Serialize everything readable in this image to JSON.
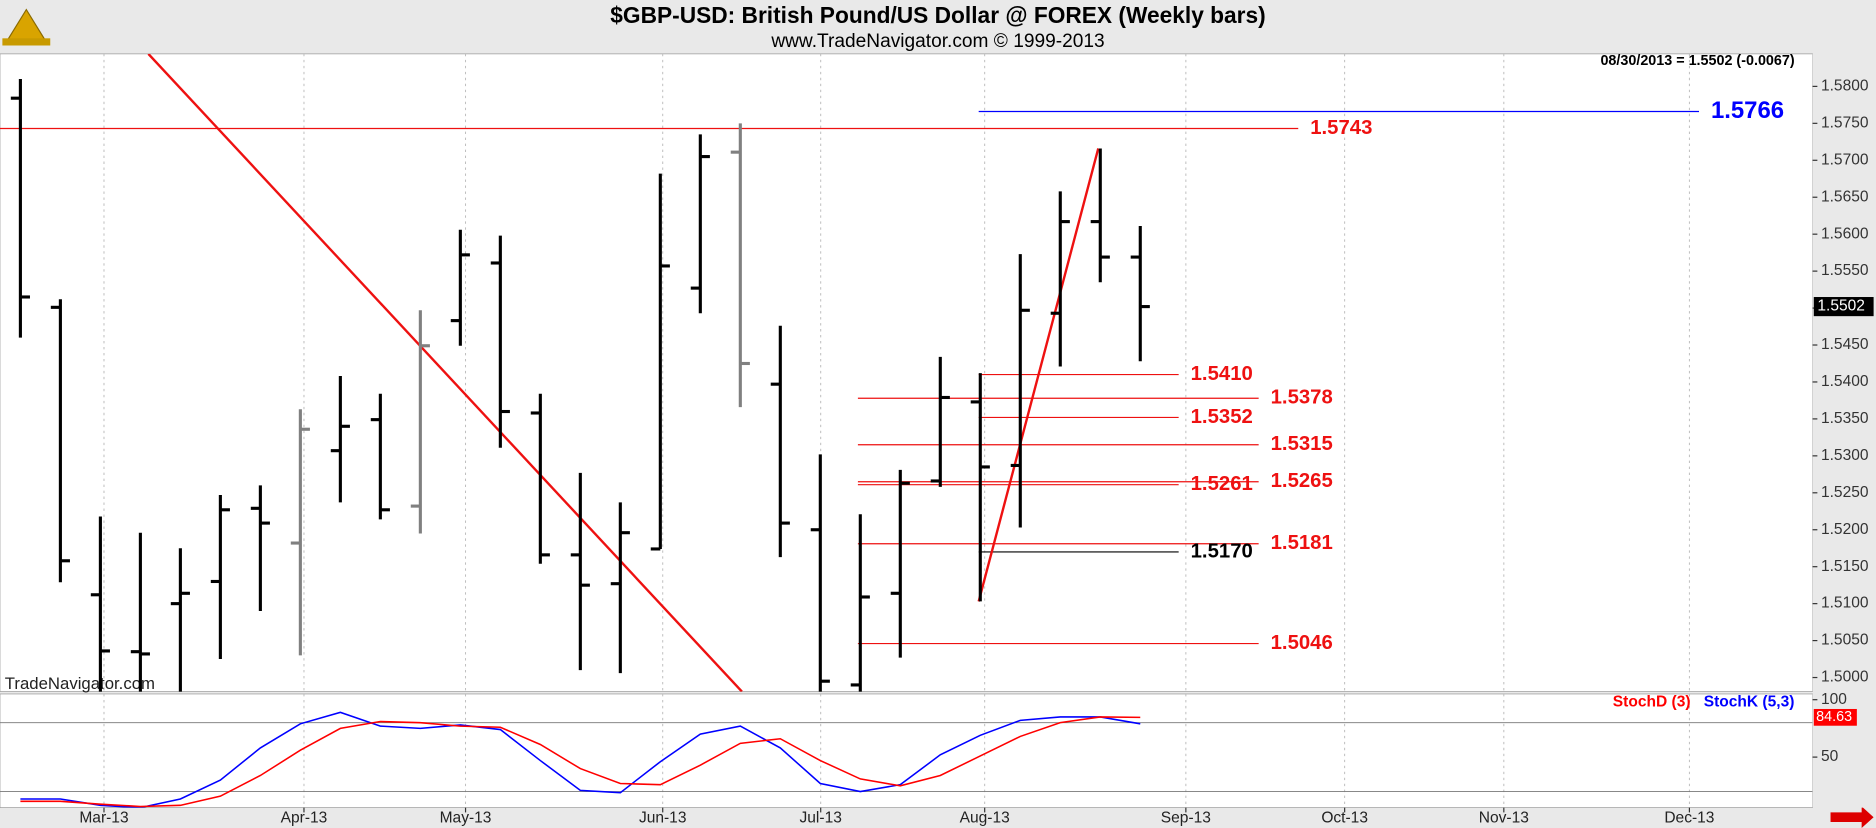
{
  "chart_data": [
    {
      "type": "ohlc",
      "title": "$GBP-USD:  British Pound/US Dollar @ FOREX  (Weekly bars)",
      "subtitle": "www.TradeNavigator.com © 1999-2013",
      "header_note": "08/30/2013 = 1.5502 (-0.0067)",
      "watermark": "TradeNavigator.com",
      "x": [
        0,
        1,
        2,
        3,
        4,
        5,
        6,
        7,
        8,
        9,
        10,
        11,
        12,
        13,
        14,
        15,
        16,
        17,
        18,
        19,
        20,
        21,
        22,
        23,
        24,
        25,
        26,
        27,
        28
      ],
      "open": [
        1.5784,
        1.5501,
        1.5112,
        1.5035,
        1.51,
        1.513,
        1.5229,
        1.5182,
        1.5307,
        1.5349,
        1.5232,
        1.5483,
        1.5561,
        1.5358,
        1.5166,
        1.5127,
        1.5174,
        1.5527,
        1.5711,
        1.5397,
        1.52,
        1.499,
        1.5114,
        1.5266,
        1.5373,
        1.5287,
        1.5493,
        1.5617,
        1.5569
      ],
      "high": [
        1.581,
        1.5512,
        1.5218,
        1.5196,
        1.5175,
        1.5247,
        1.526,
        1.5363,
        1.5408,
        1.5384,
        1.5497,
        1.5606,
        1.5598,
        1.5384,
        1.5277,
        1.5237,
        1.5682,
        1.5735,
        1.575,
        1.5476,
        1.5302,
        1.5221,
        1.5281,
        1.5434,
        1.5412,
        1.5573,
        1.5658,
        1.5716,
        1.5611
      ],
      "low": [
        1.546,
        1.5129,
        1.497,
        1.497,
        1.497,
        1.5025,
        1.509,
        1.503,
        1.5237,
        1.5214,
        1.5195,
        1.5449,
        1.5311,
        1.5154,
        1.501,
        1.5006,
        1.5174,
        1.5493,
        1.5366,
        1.5163,
        1.497,
        1.497,
        1.5027,
        1.5258,
        1.5103,
        1.5203,
        1.5421,
        1.5535,
        1.5428
      ],
      "close": [
        1.5515,
        1.5158,
        1.5036,
        1.5032,
        1.5114,
        1.5227,
        1.5209,
        1.5336,
        1.534,
        1.5227,
        1.5449,
        1.5572,
        1.536,
        1.5166,
        1.5125,
        1.5196,
        1.5557,
        1.5705,
        1.5425,
        1.5209,
        1.4995,
        1.5109,
        1.5263,
        1.5379,
        1.5285,
        1.5497,
        1.5617,
        1.5569,
        1.5502
      ],
      "bar_colors": [
        "#000000",
        "#000000",
        "#000000",
        "#000000",
        "#000000",
        "#000000",
        "#000000",
        "#808080",
        "#000000",
        "#000000",
        "#808080",
        "#000000",
        "#000000",
        "#000000",
        "#000000",
        "#000000",
        "#000000",
        "#000000",
        "#808080",
        "#000000",
        "#000000",
        "#000000",
        "#000000",
        "#000000",
        "#000000",
        "#000000",
        "#000000",
        "#000000",
        "#000000"
      ],
      "xlim": [
        -0.51,
        44.81
      ],
      "ylim": [
        1.4981,
        1.5844
      ],
      "yticks": [
        {
          "value": 1.5,
          "label": "1.5000"
        },
        {
          "value": 1.505,
          "label": "1.5050"
        },
        {
          "value": 1.51,
          "label": "1.5100"
        },
        {
          "value": 1.515,
          "label": "1.5150"
        },
        {
          "value": 1.52,
          "label": "1.5200"
        },
        {
          "value": 1.525,
          "label": "1.5250"
        },
        {
          "value": 1.53,
          "label": "1.5300"
        },
        {
          "value": 1.535,
          "label": "1.5350"
        },
        {
          "value": 1.54,
          "label": "1.5400"
        },
        {
          "value": 1.545,
          "label": "1.5450"
        },
        {
          "value": 1.55,
          "label": "1.5500"
        },
        {
          "value": 1.555,
          "label": "1.5550"
        },
        {
          "value": 1.56,
          "label": "1.5600"
        },
        {
          "value": 1.565,
          "label": "1.5650"
        },
        {
          "value": 1.57,
          "label": "1.5700"
        },
        {
          "value": 1.575,
          "label": "1.5750"
        },
        {
          "value": 1.58,
          "label": "1.5800"
        }
      ],
      "levels": [
        {
          "value": 1.5743,
          "label": "1.5743",
          "color": "#ee1111",
          "x": [
            -0.51,
            31.95
          ]
        },
        {
          "value": 1.5766,
          "label": "1.5766",
          "color": "#0000ff",
          "x": [
            23.96,
            41.97
          ]
        },
        {
          "value": 1.541,
          "label": "1.5410",
          "color": "#ee1111",
          "x": [
            23.96,
            28.96
          ]
        },
        {
          "value": 1.5378,
          "label": "1.5378",
          "color": "#ee1111",
          "x": [
            20.94,
            30.96
          ]
        },
        {
          "value": 1.5352,
          "label": "1.5352",
          "color": "#ee1111",
          "x": [
            23.96,
            28.96
          ]
        },
        {
          "value": 1.5315,
          "label": "1.5315",
          "color": "#ee1111",
          "x": [
            20.94,
            30.96
          ]
        },
        {
          "value": 1.5261,
          "label": "1.5261",
          "color": "#ee1111",
          "x": [
            20.94,
            28.96
          ]
        },
        {
          "value": 1.5265,
          "label": "1.5265",
          "color": "#ee1111",
          "x": [
            20.94,
            30.96
          ]
        },
        {
          "value": 1.5181,
          "label": "1.5181",
          "color": "#ee1111",
          "x": [
            20.94,
            30.96
          ]
        },
        {
          "value": 1.517,
          "label": "1.5170",
          "color": "#000000",
          "x": [
            23.96,
            28.96
          ]
        },
        {
          "value": 1.5046,
          "label": "1.5046",
          "color": "#ee1111",
          "x": [
            20.94,
            30.96
          ]
        }
      ],
      "trendlines": [
        {
          "color": "#ee1111",
          "x": [
            3.2,
            18.04
          ],
          "y": [
            1.5844,
            1.4981
          ]
        },
        {
          "color": "#ee1111",
          "x": [
            23.96,
            26.95
          ],
          "y": [
            1.5103,
            1.5716
          ]
        }
      ]
    },
    {
      "type": "line",
      "x": [
        0,
        1,
        2,
        3,
        4,
        5,
        6,
        7,
        8,
        9,
        10,
        11,
        12,
        13,
        14,
        15,
        16,
        17,
        18,
        19,
        20,
        21,
        22,
        23,
        24,
        25,
        26,
        27,
        28
      ],
      "series": [
        {
          "name": "StochD (3)",
          "color": "#ff0000",
          "values": [
            11.5,
            11.5,
            9,
            7,
            8,
            16,
            34,
            56,
            75,
            81,
            80,
            77,
            76,
            61,
            40,
            27,
            26,
            43,
            62,
            66,
            47,
            31,
            25,
            34,
            51,
            68,
            80,
            85,
            84.63
          ]
        },
        {
          "name": "StochK (5,3)",
          "color": "#0000ff",
          "values": [
            13.5,
            13.5,
            8,
            6,
            13.5,
            30,
            58,
            79,
            89,
            77,
            75,
            78,
            74,
            47,
            21,
            19,
            46,
            70,
            77,
            58,
            27,
            20,
            26,
            52,
            69,
            82,
            85,
            85,
            79
          ]
        }
      ],
      "xlim": [
        -0.51,
        44.81
      ],
      "ylim": [
        6,
        105
      ],
      "yticks": [
        50,
        100
      ],
      "ref_lines": [
        20,
        80
      ],
      "xticks": [
        {
          "value": 2.09,
          "label": "Mar-13"
        },
        {
          "value": 7.09,
          "label": "Apr-13"
        },
        {
          "value": 11.13,
          "label": "May-13"
        },
        {
          "value": 16.06,
          "label": "Jun-13"
        },
        {
          "value": 20.01,
          "label": "Jul-13"
        },
        {
          "value": 24.11,
          "label": "Aug-13"
        },
        {
          "value": 29.14,
          "label": "Sep-13"
        },
        {
          "value": 33.11,
          "label": "Oct-13"
        },
        {
          "value": 37.09,
          "label": "Nov-13"
        },
        {
          "value": 41.73,
          "label": "Dec-13"
        }
      ],
      "grid": "x"
    }
  ]
}
